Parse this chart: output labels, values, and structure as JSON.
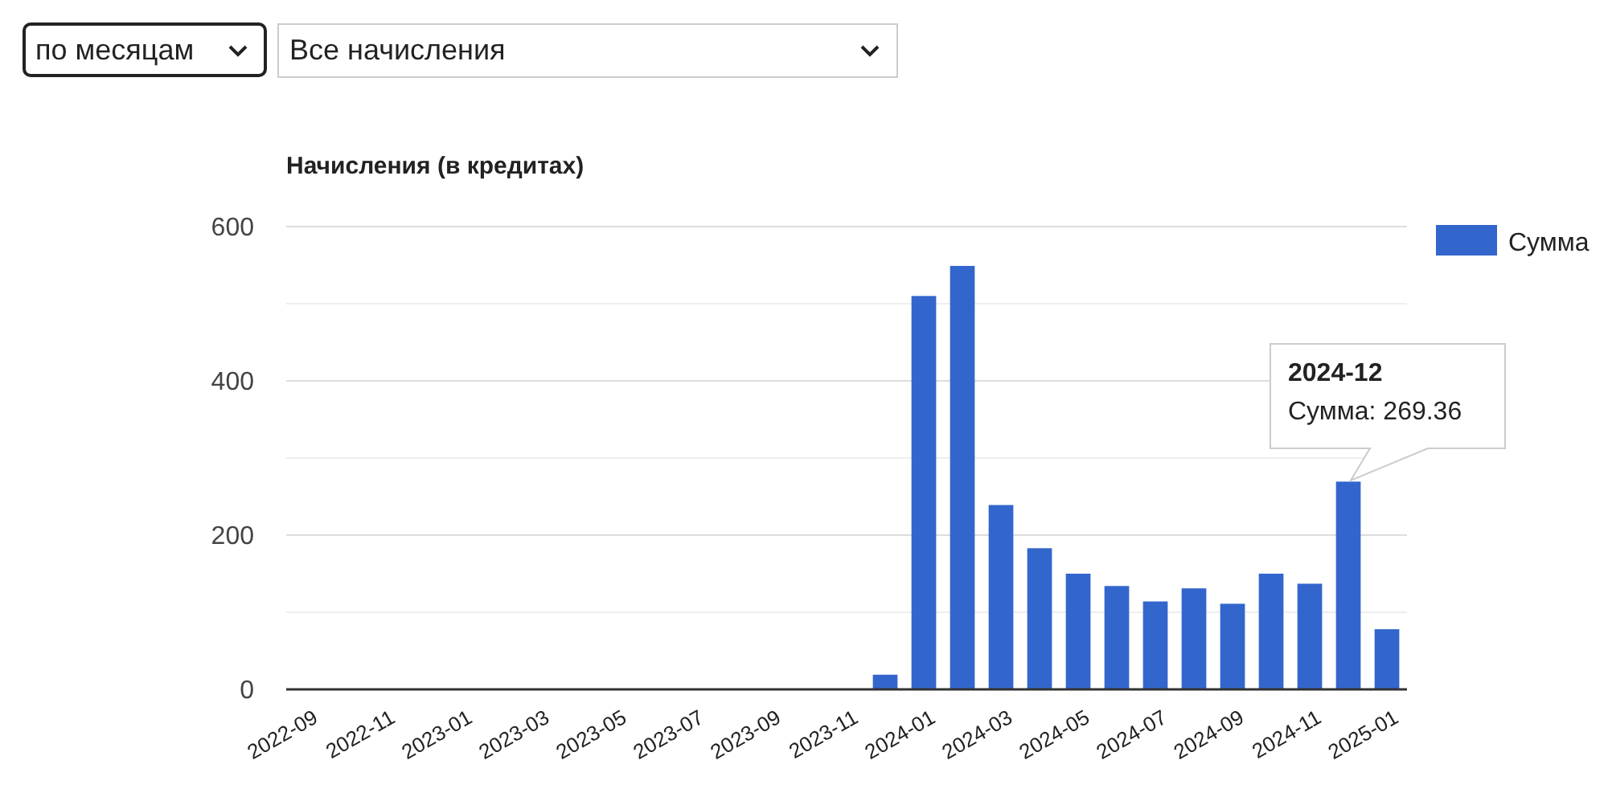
{
  "chart_data": {
    "type": "bar",
    "title": "Начисления (в кредитах)",
    "categories": [
      "2022-09",
      null,
      "2022-11",
      null,
      "2023-01",
      null,
      "2023-03",
      null,
      "2023-05",
      null,
      "2023-07",
      null,
      "2023-09",
      null,
      "2023-11",
      null,
      "2024-01",
      null,
      "2024-03",
      null,
      "2024-05",
      null,
      "2024-07",
      null,
      "2024-09",
      null,
      "2024-11",
      null,
      "2025-01"
    ],
    "series": [
      {
        "name": "Сумма",
        "color": "#3366cc",
        "values": [
          0,
          0,
          0,
          0,
          0,
          0,
          0,
          0,
          0,
          0,
          0,
          0,
          0,
          0,
          0,
          19,
          510,
          549,
          239,
          183,
          150,
          134,
          114,
          131,
          111,
          150,
          137,
          269.36,
          78
        ]
      }
    ],
    "ylim": [
      0,
      600
    ],
    "yticks": [
      0,
      {
        "value": 100,
        "label": null
      },
      200,
      {
        "value": 300,
        "label": null
      },
      400,
      {
        "value": 500,
        "label": null
      },
      600
    ],
    "grid": "y",
    "legend": "right",
    "annotations": [
      "по месяцам",
      "Все начисления",
      "2024-12\nСумма: 269.36"
    ]
  }
}
